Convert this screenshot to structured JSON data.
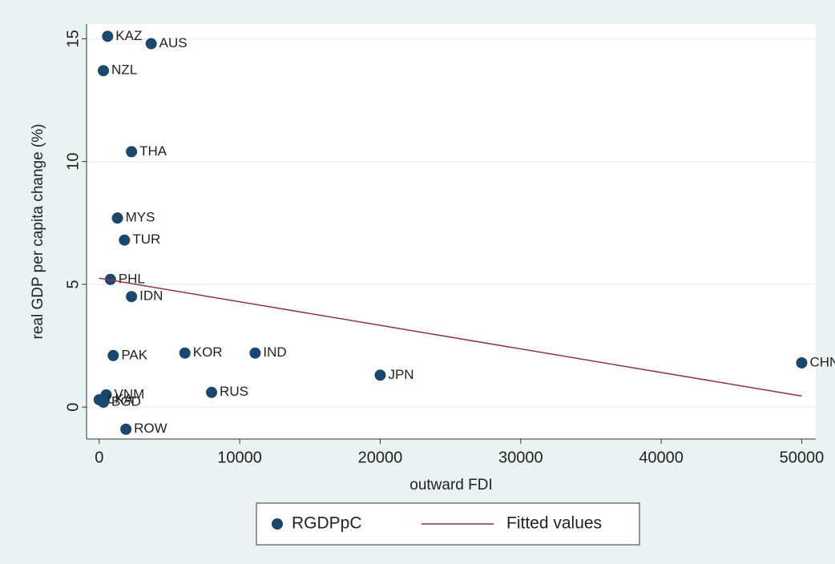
{
  "chart_data": {
    "type": "scatter",
    "xlabel": "outward FDI",
    "ylabel": "real GDP per capita change (%)",
    "xlim": [
      -900,
      51000
    ],
    "ylim": [
      -1.3,
      15.6
    ],
    "xticks": [
      0,
      10000,
      20000,
      30000,
      40000,
      50000
    ],
    "yticks": [
      0,
      5,
      10,
      15
    ],
    "grid": true,
    "series": [
      {
        "name": "RGDPpC",
        "color": "#1a476f",
        "kind": "points",
        "labels": [
          "KAZ",
          "AUS",
          "NZL",
          "THA",
          "MYS",
          "TUR",
          "PHL",
          "IDN",
          "PAK",
          "KOR",
          "IND",
          "JPN",
          "CHN",
          "RUS",
          "VNM",
          "LKA",
          "BGD",
          "ROW"
        ],
        "x": [
          600,
          3700,
          300,
          2300,
          1300,
          1800,
          800,
          2300,
          1000,
          6100,
          11100,
          20000,
          50000,
          8000,
          500,
          0,
          300,
          1900
        ],
        "values": [
          15.1,
          14.8,
          13.7,
          10.4,
          7.7,
          6.8,
          5.2,
          4.5,
          2.1,
          2.2,
          2.2,
          1.3,
          1.8,
          0.6,
          0.5,
          0.3,
          0.2,
          -0.9
        ]
      },
      {
        "name": "Fitted values",
        "color": "#90353b",
        "kind": "line",
        "x": [
          0,
          50000
        ],
        "values": [
          5.25,
          0.45
        ]
      }
    ],
    "legend": "bottom"
  }
}
